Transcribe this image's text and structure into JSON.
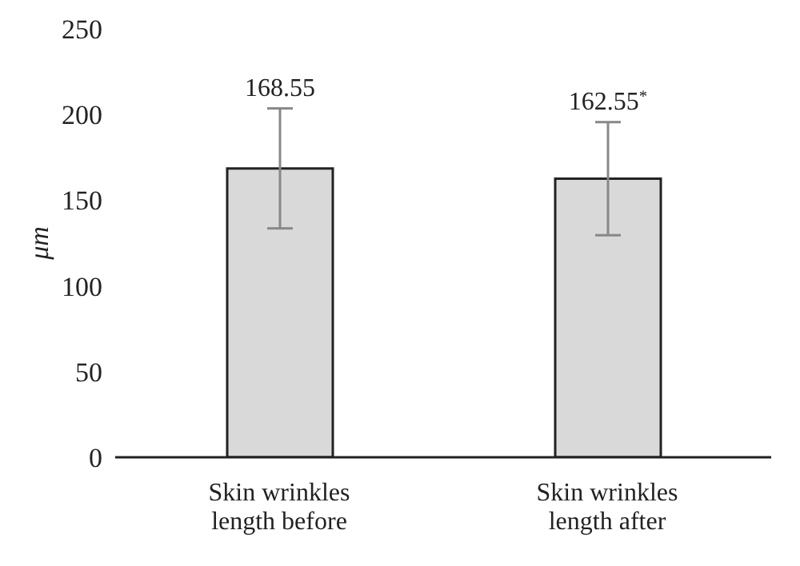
{
  "chart_data": {
    "type": "bar",
    "ylabel": "μm",
    "categories": [
      "Skin wrinkles length before",
      "Skin wrinkles length after"
    ],
    "values": [
      168.55,
      162.55
    ],
    "errors": [
      35,
      33
    ],
    "value_labels": [
      "168.55",
      "162.55$^{*}$"
    ],
    "color": "#d9d9d9",
    "ylim": [
      0,
      250
    ],
    "yticks": [
      0,
      50,
      100,
      150,
      200,
      250
    ],
    "grid": false,
    "legend": false
  }
}
